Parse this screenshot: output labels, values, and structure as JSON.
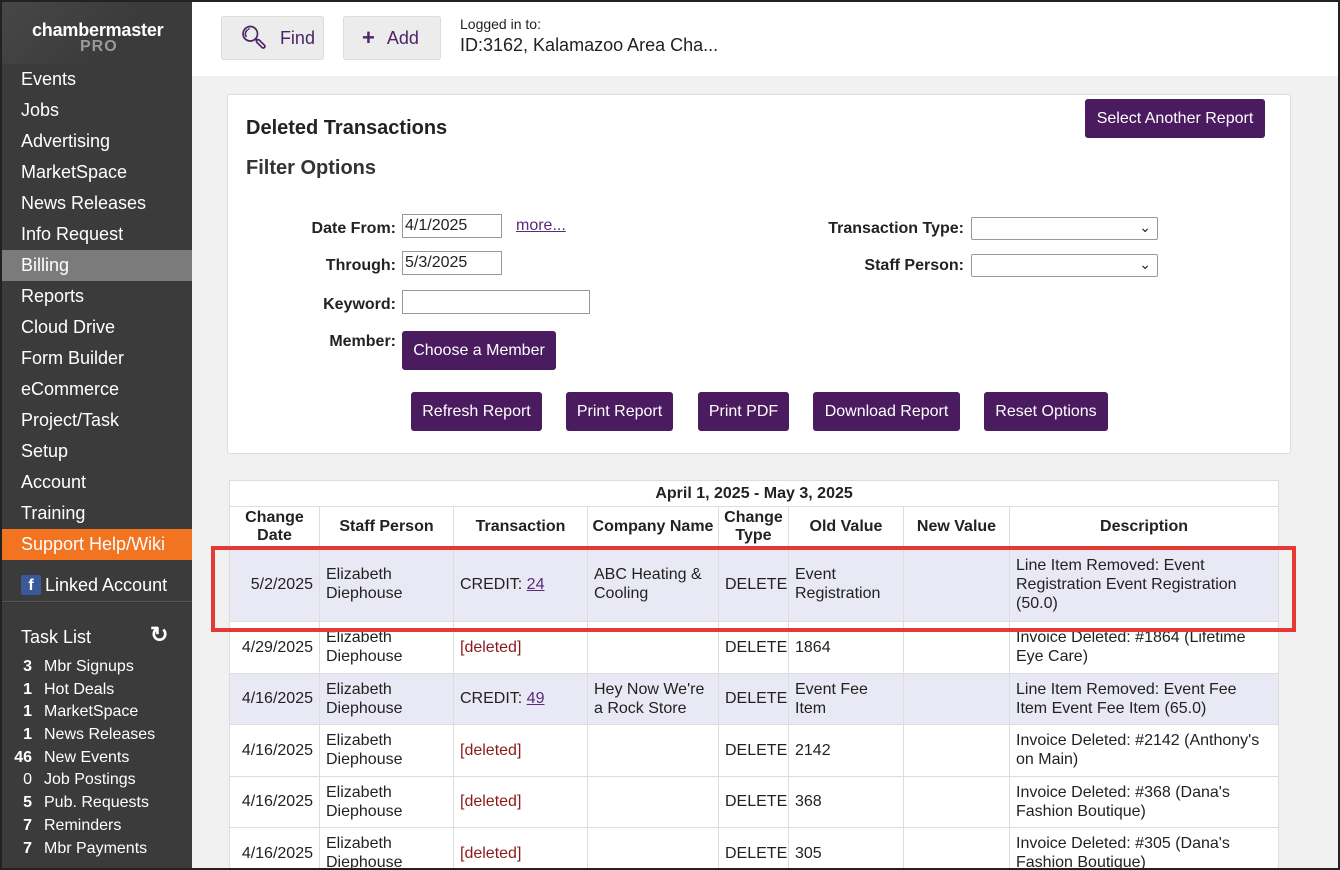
{
  "sidebar": {
    "logo_name": "chambermaster",
    "logo_sub": "PRO",
    "nav": [
      "Events",
      "Jobs",
      "Advertising",
      "MarketSpace",
      "News Releases",
      "Info Request",
      "Billing",
      "Reports",
      "Cloud Drive",
      "Form Builder",
      "eCommerce",
      "Project/Task",
      "Setup",
      "Account",
      "Training",
      "Support Help/Wiki"
    ],
    "linked_account": "Linked Account",
    "task_list_title": "Task List",
    "tasks": [
      {
        "count": "3",
        "label": "Mbr Signups"
      },
      {
        "count": "1",
        "label": "Hot Deals"
      },
      {
        "count": "1",
        "label": "MarketSpace"
      },
      {
        "count": "1",
        "label": "News Releases"
      },
      {
        "count": "46",
        "label": "New Events"
      },
      {
        "count": "0",
        "label": "Job Postings"
      },
      {
        "count": "5",
        "label": "Pub. Requests"
      },
      {
        "count": "7",
        "label": "Reminders"
      },
      {
        "count": "7",
        "label": "Mbr Payments"
      }
    ]
  },
  "header": {
    "find_label": "Find",
    "add_label": "Add",
    "logged_in_label": "Logged in to:",
    "logged_in_value": "ID:3162, Kalamazoo Area Cha..."
  },
  "panel": {
    "title": "Deleted Transactions",
    "subtitle": "Filter Options",
    "select_report": "Select Another Report",
    "date_from_label": "Date From:",
    "date_from": "4/1/2025",
    "more_link": "more...",
    "through_label": "Through:",
    "through": "5/3/2025",
    "keyword_label": "Keyword:",
    "keyword": "",
    "member_label": "Member:",
    "choose_member": "Choose a Member",
    "transaction_type_label": "Transaction Type:",
    "transaction_type": "",
    "staff_person_label": "Staff Person:",
    "staff_person": "",
    "buttons": [
      "Refresh Report",
      "Print Report",
      "Print PDF",
      "Download Report",
      "Reset Options"
    ]
  },
  "table": {
    "caption": "April 1, 2025 - May 3, 2025",
    "headers": [
      "Change Date",
      "Staff Person",
      "Transaction",
      "Company Name",
      "Change Type",
      "Old Value",
      "New Value",
      "Description"
    ],
    "rows": [
      {
        "date": "5/2/2025",
        "staff": "Elizabeth Diephouse",
        "tx_prefix": "CREDIT: ",
        "tx_link": "24",
        "tx_deleted": "",
        "company": "ABC Heating & Cooling",
        "type": "DELETE",
        "old": "Event Registration",
        "new": "",
        "desc": "Line Item Removed: Event Registration Event Registration (50.0)"
      },
      {
        "date": "4/29/2025",
        "staff": "Elizabeth Diephouse",
        "tx_prefix": "",
        "tx_link": "",
        "tx_deleted": "[deleted]",
        "company": "",
        "type": "DELETE",
        "old": "1864",
        "new": "",
        "desc": "Invoice Deleted: #1864 (Lifetime Eye Care)"
      },
      {
        "date": "4/16/2025",
        "staff": "Elizabeth Diephouse",
        "tx_prefix": "CREDIT: ",
        "tx_link": "49",
        "tx_deleted": "",
        "company": "Hey Now We're a Rock Store",
        "type": "DELETE",
        "old": "Event Fee Item",
        "new": "",
        "desc": "Line Item Removed: Event Fee Item Event Fee Item (65.0)"
      },
      {
        "date": "4/16/2025",
        "staff": "Elizabeth Diephouse",
        "tx_prefix": "",
        "tx_link": "",
        "tx_deleted": "[deleted]",
        "company": "",
        "type": "DELETE",
        "old": "2142",
        "new": "",
        "desc": "Invoice Deleted: #2142 (Anthony's on Main)"
      },
      {
        "date": "4/16/2025",
        "staff": "Elizabeth Diephouse",
        "tx_prefix": "",
        "tx_link": "",
        "tx_deleted": "[deleted]",
        "company": "",
        "type": "DELETE",
        "old": "368",
        "new": "",
        "desc": "Invoice Deleted: #368 (Dana's Fashion Boutique)"
      },
      {
        "date": "4/16/2025",
        "staff": "Elizabeth Diephouse",
        "tx_prefix": "",
        "tx_link": "",
        "tx_deleted": "[deleted]",
        "company": "",
        "type": "DELETE",
        "old": "305",
        "new": "",
        "desc": "Invoice Deleted: #305 (Dana's Fashion Boutique)"
      }
    ]
  },
  "colors": {
    "accent_purple": "#4a1b5f",
    "support_orange": "#f27320",
    "highlight_red": "#e53935"
  }
}
